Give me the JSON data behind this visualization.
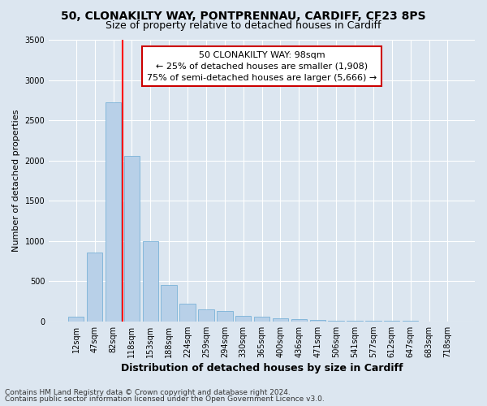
{
  "title1": "50, CLONAKILTY WAY, PONTPRENNAU, CARDIFF, CF23 8PS",
  "title2": "Size of property relative to detached houses in Cardiff",
  "xlabel": "Distribution of detached houses by size in Cardiff",
  "ylabel": "Number of detached properties",
  "categories": [
    "12sqm",
    "47sqm",
    "82sqm",
    "118sqm",
    "153sqm",
    "188sqm",
    "224sqm",
    "259sqm",
    "294sqm",
    "330sqm",
    "365sqm",
    "400sqm",
    "436sqm",
    "471sqm",
    "506sqm",
    "541sqm",
    "577sqm",
    "612sqm",
    "647sqm",
    "683sqm",
    "718sqm"
  ],
  "values": [
    60,
    850,
    2720,
    2060,
    1000,
    450,
    220,
    150,
    130,
    65,
    55,
    35,
    25,
    15,
    10,
    5,
    5,
    2,
    2,
    1,
    1
  ],
  "bar_color": "#b8d0e8",
  "bar_edgecolor": "#6aaad4",
  "red_line_x": 2.5,
  "annotation_line1": "50 CLONAKILTY WAY: 98sqm",
  "annotation_line2": "← 25% of detached houses are smaller (1,908)",
  "annotation_line3": "75% of semi-detached houses are larger (5,666) →",
  "annotation_box_color": "#ffffff",
  "annotation_border_color": "#cc0000",
  "ylim": [
    0,
    3500
  ],
  "yticks": [
    0,
    500,
    1000,
    1500,
    2000,
    2500,
    3000,
    3500
  ],
  "background_color": "#dce6f0",
  "grid_color": "#ffffff",
  "footer1": "Contains HM Land Registry data © Crown copyright and database right 2024.",
  "footer2": "Contains public sector information licensed under the Open Government Licence v3.0.",
  "title1_fontsize": 10,
  "title2_fontsize": 9,
  "xlabel_fontsize": 9,
  "ylabel_fontsize": 8,
  "tick_fontsize": 7,
  "footer_fontsize": 6.5
}
